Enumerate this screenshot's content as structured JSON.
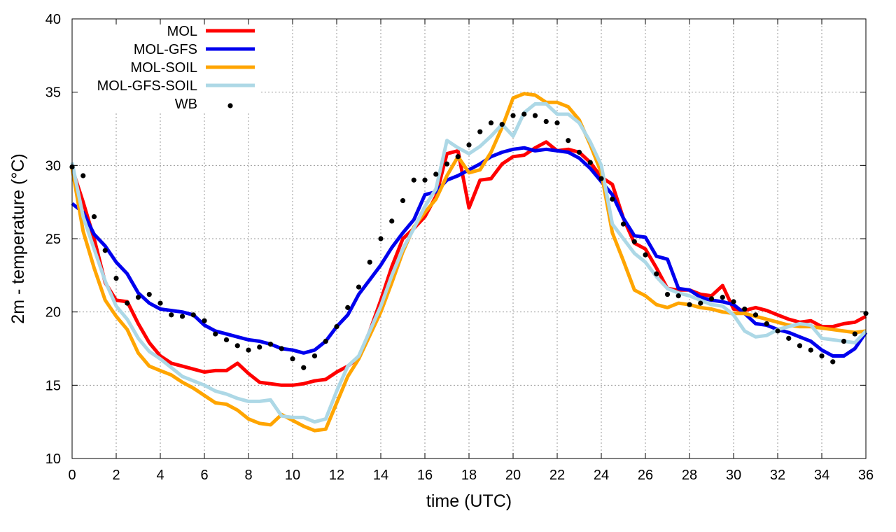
{
  "chart_data": {
    "type": "line",
    "title": "",
    "xlabel": "time (UTC)",
    "ylabel": "2m - temperature (°C)",
    "xlim": [
      0,
      36
    ],
    "ylim": [
      10,
      40
    ],
    "xticks": [
      0,
      2,
      4,
      6,
      8,
      10,
      12,
      14,
      16,
      18,
      20,
      22,
      24,
      26,
      28,
      30,
      32,
      34,
      36
    ],
    "yticks": [
      10,
      15,
      20,
      25,
      30,
      35,
      40
    ],
    "xtick_labels": [
      "0",
      "2",
      "4",
      "6",
      "8",
      "10",
      "12",
      "14",
      "16",
      "18",
      "20",
      "22",
      "24",
      "26",
      "28",
      "30",
      "32",
      "34",
      "36"
    ],
    "ytick_labels": [
      "10",
      "15",
      "20",
      "25",
      "30",
      "35",
      "40"
    ],
    "grid": true,
    "legend_position": "top-left",
    "series": [
      {
        "name": "MOL",
        "color": "#ff0000",
        "style": "line",
        "x": [
          0,
          0.5,
          1,
          1.5,
          2,
          2.5,
          3,
          3.5,
          4,
          4.5,
          5,
          5.5,
          6,
          6.5,
          7,
          7.5,
          8,
          8.5,
          9,
          9.5,
          10,
          10.5,
          11,
          11.5,
          12,
          12.5,
          13,
          13.5,
          14,
          14.5,
          15,
          15.5,
          16,
          16.5,
          17,
          17.5,
          18,
          18.5,
          19,
          19.5,
          20,
          20.5,
          21,
          21.5,
          22,
          22.5,
          23,
          23.5,
          24,
          24.5,
          25,
          25.5,
          26,
          26.5,
          27,
          27.5,
          28,
          28.5,
          29,
          29.5,
          30,
          30.5,
          31,
          31.5,
          32,
          32.5,
          33,
          33.5,
          34,
          34.5,
          35,
          35.5,
          36
        ],
        "values": [
          29.8,
          27.5,
          25.0,
          22.0,
          20.8,
          20.7,
          19.2,
          17.9,
          17.0,
          16.5,
          16.3,
          16.1,
          15.9,
          16.0,
          16.0,
          16.5,
          15.8,
          15.2,
          15.1,
          15.0,
          15.0,
          15.1,
          15.3,
          15.4,
          15.9,
          16.3,
          16.9,
          18.7,
          20.8,
          23.1,
          25.0,
          25.7,
          26.5,
          27.9,
          30.8,
          31.0,
          27.1,
          29.0,
          29.1,
          30.1,
          30.6,
          30.7,
          31.2,
          31.6,
          31.0,
          31.1,
          30.9,
          30.2,
          29.2,
          28.7,
          26.4,
          24.7,
          24.3,
          23.0,
          21.6,
          21.5,
          21.5,
          21.2,
          21.1,
          21.8,
          20.2,
          20.1,
          20.3,
          20.1,
          19.8,
          19.5,
          19.3,
          19.4,
          19.0,
          19.0,
          19.2,
          19.3,
          19.7
        ]
      },
      {
        "name": "MOL-GFS",
        "color": "#0000ee",
        "style": "line",
        "x": [
          0,
          0.5,
          1,
          1.5,
          2,
          2.5,
          3,
          3.5,
          4,
          4.5,
          5,
          5.5,
          6,
          6.5,
          7,
          7.5,
          8,
          8.5,
          9,
          9.5,
          10,
          10.5,
          11,
          11.5,
          12,
          12.5,
          13,
          13.5,
          14,
          14.5,
          15,
          15.5,
          16,
          16.5,
          17,
          17.5,
          18,
          18.5,
          19,
          19.5,
          20,
          20.5,
          21,
          21.5,
          22,
          22.5,
          23,
          23.5,
          24,
          24.5,
          25,
          25.5,
          26,
          26.5,
          27,
          27.5,
          28,
          28.5,
          29,
          29.5,
          30,
          30.5,
          31,
          31.5,
          32,
          32.5,
          33,
          33.5,
          34,
          34.5,
          35,
          35.5,
          36
        ],
        "values": [
          27.4,
          26.8,
          25.3,
          24.5,
          23.4,
          22.6,
          21.3,
          20.6,
          20.2,
          20.1,
          20.0,
          19.8,
          19.1,
          18.7,
          18.5,
          18.3,
          18.1,
          18.0,
          17.8,
          17.5,
          17.4,
          17.2,
          17.4,
          18.0,
          19.0,
          19.8,
          21.2,
          22.2,
          23.2,
          24.4,
          25.4,
          26.3,
          28.0,
          28.2,
          29.0,
          29.3,
          29.7,
          30.1,
          30.6,
          30.9,
          31.1,
          31.2,
          31.0,
          31.1,
          31.0,
          30.9,
          30.5,
          29.8,
          28.9,
          28.0,
          26.4,
          25.2,
          25.1,
          23.8,
          23.6,
          21.6,
          21.5,
          21.0,
          20.8,
          20.7,
          20.5,
          19.9,
          19.2,
          19.1,
          18.8,
          18.6,
          18.3,
          18.0,
          17.4,
          17.0,
          17.0,
          17.5,
          18.6
        ]
      },
      {
        "name": "MOL-SOIL",
        "color": "#ffa500",
        "style": "line",
        "x": [
          0,
          0.5,
          1,
          1.5,
          2,
          2.5,
          3,
          3.5,
          4,
          4.5,
          5,
          5.5,
          6,
          6.5,
          7,
          7.5,
          8,
          8.5,
          9,
          9.5,
          10,
          10.5,
          11,
          11.5,
          12,
          12.5,
          13,
          13.5,
          14,
          14.5,
          15,
          15.5,
          16,
          16.5,
          17,
          17.5,
          18,
          18.5,
          19,
          19.5,
          20,
          20.5,
          21,
          21.5,
          22,
          22.5,
          23,
          23.5,
          24,
          24.5,
          25,
          25.5,
          26,
          26.5,
          27,
          27.5,
          28,
          28.5,
          29,
          29.5,
          30,
          30.5,
          31,
          31.5,
          32,
          32.5,
          33,
          33.5,
          34,
          34.5,
          35,
          35.5,
          36
        ],
        "values": [
          29.8,
          25.5,
          23.0,
          20.8,
          19.7,
          18.8,
          17.2,
          16.3,
          16.0,
          15.7,
          15.2,
          14.8,
          14.3,
          13.8,
          13.7,
          13.3,
          12.7,
          12.4,
          12.3,
          13.0,
          12.6,
          12.2,
          11.9,
          12.0,
          13.8,
          15.6,
          16.8,
          18.4,
          20.0,
          22.0,
          24.1,
          25.8,
          26.8,
          27.7,
          29.3,
          30.6,
          29.5,
          29.7,
          30.9,
          32.6,
          34.6,
          34.9,
          34.8,
          34.3,
          34.3,
          34.0,
          33.1,
          31.4,
          29.5,
          25.4,
          23.5,
          21.5,
          21.1,
          20.5,
          20.3,
          20.6,
          20.5,
          20.3,
          20.2,
          20.0,
          19.9,
          19.9,
          19.7,
          19.5,
          19.3,
          19.1,
          19.0,
          19.0,
          18.9,
          18.8,
          18.7,
          18.6,
          18.7
        ]
      },
      {
        "name": "MOL-GFS-SOIL",
        "color": "#add8e6",
        "style": "line",
        "x": [
          0,
          0.5,
          1,
          1.5,
          2,
          2.5,
          3,
          3.5,
          4,
          4.5,
          5,
          5.5,
          6,
          6.5,
          7,
          7.5,
          8,
          8.5,
          9,
          9.5,
          10,
          10.5,
          11,
          11.5,
          12,
          12.5,
          13,
          13.5,
          14,
          14.5,
          15,
          15.5,
          16,
          16.5,
          17,
          17.5,
          18,
          18.5,
          19,
          19.5,
          20,
          20.5,
          21,
          21.5,
          22,
          22.5,
          23,
          23.5,
          24,
          24.5,
          25,
          25.5,
          26,
          26.5,
          27,
          27.5,
          28,
          28.5,
          29,
          29.5,
          30,
          30.5,
          31,
          31.5,
          32,
          32.5,
          33,
          33.5,
          34,
          34.5,
          35,
          35.5,
          36
        ],
        "values": [
          30.2,
          26.5,
          24.3,
          22.1,
          20.4,
          19.5,
          18.2,
          17.3,
          16.8,
          16.2,
          15.6,
          15.3,
          15.0,
          14.6,
          14.4,
          14.1,
          13.9,
          13.9,
          14.0,
          12.9,
          12.8,
          12.8,
          12.5,
          12.7,
          14.6,
          16.3,
          17.0,
          18.7,
          20.4,
          22.5,
          24.3,
          25.7,
          27.2,
          28.4,
          31.7,
          31.2,
          30.8,
          31.3,
          32.0,
          32.8,
          32.0,
          33.6,
          34.2,
          34.2,
          33.5,
          33.5,
          32.9,
          31.6,
          30.0,
          26.0,
          25.0,
          24.0,
          23.4,
          22.4,
          21.6,
          21.3,
          21.1,
          20.8,
          20.5,
          20.4,
          19.8,
          18.7,
          18.3,
          18.4,
          18.8,
          19.0,
          19.2,
          19.1,
          18.2,
          18.1,
          18.0,
          17.9,
          18.7
        ]
      },
      {
        "name": "WB",
        "color": "#000000",
        "style": "points",
        "x": [
          0,
          0.5,
          1,
          1.5,
          2,
          2.5,
          3,
          3.5,
          4,
          4.5,
          5,
          5.5,
          6,
          6.5,
          7,
          7.5,
          8,
          8.5,
          9,
          9.5,
          10,
          10.5,
          11,
          11.5,
          12,
          12.5,
          13,
          13.5,
          14,
          14.5,
          15,
          15.5,
          16,
          16.5,
          17,
          17.5,
          18,
          18.5,
          19,
          19.5,
          20,
          20.5,
          21,
          21.5,
          22,
          22.5,
          23,
          23.5,
          24,
          24.5,
          25,
          25.5,
          26,
          26.5,
          27,
          27.5,
          28,
          28.5,
          29,
          29.5,
          30,
          30.5,
          31,
          31.5,
          32,
          32.5,
          33,
          33.5,
          34,
          34.5,
          35,
          35.5,
          36
        ],
        "values": [
          29.9,
          29.3,
          26.5,
          24.2,
          22.3,
          20.6,
          21.0,
          21.2,
          20.6,
          19.8,
          19.7,
          19.8,
          19.4,
          18.5,
          18.1,
          17.7,
          17.4,
          17.6,
          17.8,
          17.5,
          16.8,
          16.2,
          17.0,
          18.0,
          19.0,
          20.3,
          21.7,
          23.4,
          25.0,
          26.2,
          27.6,
          29.0,
          29.0,
          29.4,
          30.1,
          30.6,
          31.4,
          32.3,
          32.9,
          32.8,
          33.4,
          33.5,
          33.4,
          33.0,
          32.9,
          31.7,
          30.9,
          30.2,
          29.1,
          27.7,
          26.0,
          24.8,
          23.9,
          22.6,
          21.2,
          21.1,
          20.5,
          20.6,
          20.9,
          21.0,
          20.7,
          20.2,
          19.8,
          19.2,
          18.7,
          18.2,
          17.7,
          17.4,
          17.0,
          16.6,
          18.0,
          18.5,
          19.9
        ]
      }
    ]
  }
}
